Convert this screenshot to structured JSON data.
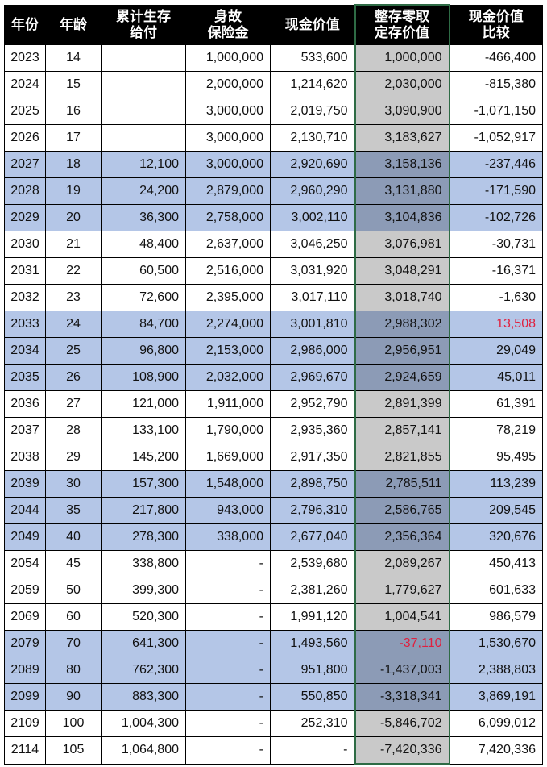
{
  "headers": [
    "年份",
    "年龄",
    "累计生存\n给付",
    "身故\n保险金",
    "现金价值",
    "整存零取\n定存价值",
    "现金价值\n比较"
  ],
  "colors": {
    "header_bg": "#000000",
    "highlight_row": "#b4c6e7",
    "deposit_column": "#c9c9c9",
    "deposit_column_highlight": "#8c9bb6",
    "negative_flag_red": "#e0203f",
    "selection_border": "#2e6b45"
  },
  "rows": [
    {
      "cells": [
        "2023",
        "14",
        "",
        "1,000,000",
        "533,600",
        "1,000,000",
        "-466,400"
      ],
      "highlight": false
    },
    {
      "cells": [
        "2024",
        "15",
        "",
        "2,000,000",
        "1,214,620",
        "2,030,000",
        "-815,380"
      ],
      "highlight": false
    },
    {
      "cells": [
        "2025",
        "16",
        "",
        "3,000,000",
        "2,019,750",
        "3,090,900",
        "-1,071,150"
      ],
      "highlight": false
    },
    {
      "cells": [
        "2026",
        "17",
        "",
        "3,000,000",
        "2,130,710",
        "3,183,627",
        "-1,052,917"
      ],
      "highlight": false
    },
    {
      "cells": [
        "2027",
        "18",
        "12,100",
        "3,000,000",
        "2,920,690",
        "3,158,136",
        "-237,446"
      ],
      "highlight": true
    },
    {
      "cells": [
        "2028",
        "19",
        "24,200",
        "2,879,000",
        "2,960,290",
        "3,131,880",
        "-171,590"
      ],
      "highlight": true
    },
    {
      "cells": [
        "2029",
        "20",
        "36,300",
        "2,758,000",
        "3,002,110",
        "3,104,836",
        "-102,726"
      ],
      "highlight": true
    },
    {
      "cells": [
        "2030",
        "21",
        "48,400",
        "2,637,000",
        "3,046,250",
        "3,076,981",
        "-30,731"
      ],
      "highlight": false
    },
    {
      "cells": [
        "2031",
        "22",
        "60,500",
        "2,516,000",
        "3,031,920",
        "3,048,291",
        "-16,371"
      ],
      "highlight": false
    },
    {
      "cells": [
        "2032",
        "23",
        "72,600",
        "2,395,000",
        "3,017,110",
        "3,018,740",
        "-1,630"
      ],
      "highlight": false
    },
    {
      "cells": [
        "2033",
        "24",
        "84,700",
        "2,274,000",
        "3,001,810",
        "2,988,302",
        "13,508"
      ],
      "highlight": true,
      "red_cell": 6
    },
    {
      "cells": [
        "2034",
        "25",
        "96,800",
        "2,153,000",
        "2,986,000",
        "2,956,951",
        "29,049"
      ],
      "highlight": true
    },
    {
      "cells": [
        "2035",
        "26",
        "108,900",
        "2,032,000",
        "2,969,670",
        "2,924,659",
        "45,011"
      ],
      "highlight": true
    },
    {
      "cells": [
        "2036",
        "27",
        "121,000",
        "1,911,000",
        "2,952,790",
        "2,891,399",
        "61,391"
      ],
      "highlight": false
    },
    {
      "cells": [
        "2037",
        "28",
        "133,100",
        "1,790,000",
        "2,935,360",
        "2,857,141",
        "78,219"
      ],
      "highlight": false
    },
    {
      "cells": [
        "2038",
        "29",
        "145,200",
        "1,669,000",
        "2,917,350",
        "2,821,855",
        "95,495"
      ],
      "highlight": false
    },
    {
      "cells": [
        "2039",
        "30",
        "157,300",
        "1,548,000",
        "2,898,750",
        "2,785,511",
        "113,239"
      ],
      "highlight": true
    },
    {
      "cells": [
        "2044",
        "35",
        "217,800",
        "943,000",
        "2,796,310",
        "2,586,765",
        "209,545"
      ],
      "highlight": true
    },
    {
      "cells": [
        "2049",
        "40",
        "278,300",
        "338,000",
        "2,677,040",
        "2,356,364",
        "320,676"
      ],
      "highlight": true
    },
    {
      "cells": [
        "2054",
        "45",
        "338,800",
        "-",
        "2,539,680",
        "2,089,267",
        "450,413"
      ],
      "highlight": false
    },
    {
      "cells": [
        "2059",
        "50",
        "399,300",
        "-",
        "2,381,260",
        "1,779,627",
        "601,633"
      ],
      "highlight": false
    },
    {
      "cells": [
        "2069",
        "60",
        "520,300",
        "-",
        "1,991,120",
        "1,004,541",
        "986,579"
      ],
      "highlight": false
    },
    {
      "cells": [
        "2079",
        "70",
        "641,300",
        "-",
        "1,493,560",
        "-37,110",
        "1,530,670"
      ],
      "highlight": true,
      "red_cell": 5
    },
    {
      "cells": [
        "2089",
        "80",
        "762,300",
        "-",
        "951,800",
        "-1,437,003",
        "2,388,803"
      ],
      "highlight": true
    },
    {
      "cells": [
        "2099",
        "90",
        "883,300",
        "-",
        "550,850",
        "-3,318,341",
        "3,869,191"
      ],
      "highlight": true
    },
    {
      "cells": [
        "2109",
        "100",
        "1,004,300",
        "-",
        "252,310",
        "-5,846,702",
        "6,099,012"
      ],
      "highlight": false
    },
    {
      "cells": [
        "2114",
        "105",
        "1,064,800",
        "-",
        "-",
        "-7,420,336",
        "7,420,336"
      ],
      "highlight": false
    }
  ]
}
